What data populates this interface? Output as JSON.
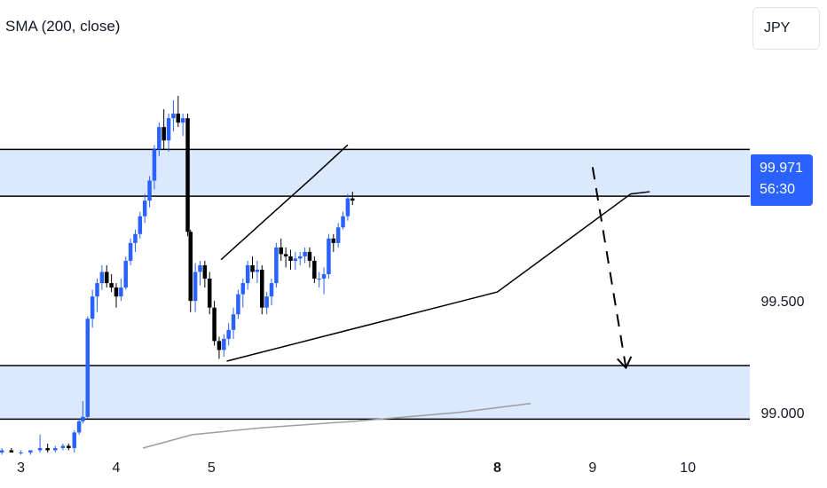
{
  "indicator": {
    "label": "SMA (200, close)"
  },
  "currency": {
    "label": "JPY"
  },
  "last_price": {
    "value": "99.971",
    "countdown": "56:30"
  },
  "colors": {
    "up": "#2962ff",
    "down": "#000000",
    "zone_fill": "#dbe8fd",
    "price_tag": "#2962ff",
    "sma_line": "#9e9e9e"
  },
  "chart_data": {
    "type": "candlestick",
    "title": "",
    "xlabel": "",
    "ylabel": "",
    "ylim": [
      98.82,
      100.85
    ],
    "xlim": [
      2.78,
      10.65
    ],
    "x_ticks": [
      {
        "value": 3,
        "label": "3",
        "bold": false
      },
      {
        "value": 4,
        "label": "4",
        "bold": false
      },
      {
        "value": 5,
        "label": "5",
        "bold": false
      },
      {
        "value": 8,
        "label": "8",
        "bold": true
      },
      {
        "value": 9,
        "label": "9",
        "bold": false
      },
      {
        "value": 10,
        "label": "10",
        "bold": false
      }
    ],
    "y_ticks": [
      {
        "value": 99.5,
        "label": "99.500"
      },
      {
        "value": 99.0,
        "label": "99.000"
      }
    ],
    "zones": [
      {
        "name": "resistance",
        "y_low": 99.97,
        "y_high": 100.18
      },
      {
        "name": "support",
        "y_low": 98.97,
        "y_high": 99.21
      }
    ],
    "last_price_line": 99.971,
    "channel": {
      "upper": [
        [
          5.1,
          99.685
        ],
        [
          5.58,
          99.87
        ],
        [
          6.05,
          100.05
        ],
        [
          6.43,
          100.2
        ]
      ],
      "lower": [
        [
          5.16,
          99.23
        ],
        [
          8.0,
          99.54
        ],
        [
          9.4,
          99.98
        ],
        [
          9.6,
          99.99
        ]
      ]
    },
    "projection_arrow": [
      [
        9.0,
        100.1
      ],
      [
        9.35,
        99.2
      ]
    ],
    "sma": [
      [
        4.28,
        98.84
      ],
      [
        4.8,
        98.9
      ],
      [
        5.5,
        98.93
      ],
      [
        6.5,
        98.96
      ],
      [
        7.6,
        99.0
      ],
      [
        8.35,
        99.04
      ]
    ],
    "candles": [
      [
        2.8,
        98.82,
        98.84,
        98.81,
        98.83
      ],
      [
        2.9,
        98.83,
        98.84,
        98.82,
        98.82
      ],
      [
        3.0,
        98.82,
        98.83,
        98.81,
        98.82
      ],
      [
        3.1,
        98.82,
        98.83,
        98.81,
        98.83
      ],
      [
        3.2,
        98.83,
        98.9,
        98.82,
        98.84
      ],
      [
        3.28,
        98.84,
        98.86,
        98.82,
        98.83
      ],
      [
        3.36,
        98.83,
        98.85,
        98.82,
        98.84
      ],
      [
        3.44,
        98.84,
        98.86,
        98.83,
        98.85
      ],
      [
        3.5,
        98.85,
        98.86,
        98.83,
        98.84
      ],
      [
        3.56,
        98.84,
        98.92,
        98.82,
        98.91
      ],
      [
        3.61,
        98.91,
        98.97,
        98.9,
        98.96
      ],
      [
        3.65,
        98.96,
        99.05,
        98.95,
        98.98
      ],
      [
        3.7,
        98.98,
        99.43,
        98.97,
        99.42
      ],
      [
        3.75,
        99.42,
        99.55,
        99.38,
        99.52
      ],
      [
        3.8,
        99.52,
        99.6,
        99.45,
        99.58
      ],
      [
        3.85,
        99.58,
        99.66,
        99.55,
        99.63
      ],
      [
        3.9,
        99.63,
        99.66,
        99.56,
        99.58
      ],
      [
        3.95,
        99.58,
        99.62,
        99.54,
        99.56
      ],
      [
        4.0,
        99.56,
        99.58,
        99.47,
        99.52
      ],
      [
        4.05,
        99.52,
        99.6,
        99.5,
        99.56
      ],
      [
        4.1,
        99.56,
        99.7,
        99.55,
        99.68
      ],
      [
        4.15,
        99.68,
        99.78,
        99.66,
        99.76
      ],
      [
        4.2,
        99.76,
        99.82,
        99.72,
        99.8
      ],
      [
        4.25,
        99.8,
        99.9,
        99.78,
        99.88
      ],
      [
        4.3,
        99.88,
        99.98,
        99.85,
        99.95
      ],
      [
        4.35,
        99.95,
        100.06,
        99.92,
        100.04
      ],
      [
        4.4,
        100.04,
        100.2,
        100.0,
        100.18
      ],
      [
        4.45,
        100.18,
        100.3,
        100.15,
        100.28
      ],
      [
        4.5,
        100.28,
        100.36,
        100.18,
        100.22
      ],
      [
        4.55,
        100.22,
        100.34,
        100.17,
        100.32
      ],
      [
        4.6,
        100.32,
        100.4,
        100.26,
        100.34
      ],
      [
        4.65,
        100.34,
        100.42,
        100.28,
        100.3
      ],
      [
        4.7,
        100.3,
        100.34,
        100.24,
        100.32
      ],
      [
        4.75,
        100.32,
        100.34,
        99.79,
        99.81
      ],
      [
        4.78,
        99.81,
        99.82,
        99.45,
        99.5
      ],
      [
        4.83,
        99.5,
        99.67,
        99.45,
        99.63
      ],
      [
        4.88,
        99.63,
        99.68,
        99.57,
        99.66
      ],
      [
        4.93,
        99.66,
        99.68,
        99.56,
        99.6
      ],
      [
        4.98,
        99.6,
        99.63,
        99.44,
        99.47
      ],
      [
        5.03,
        99.47,
        99.5,
        99.3,
        99.32
      ],
      [
        5.08,
        99.32,
        99.34,
        99.24,
        99.28
      ],
      [
        5.13,
        99.28,
        99.35,
        99.25,
        99.33
      ],
      [
        5.18,
        99.33,
        99.4,
        99.3,
        99.37
      ],
      [
        5.23,
        99.37,
        99.47,
        99.33,
        99.44
      ],
      [
        5.28,
        99.44,
        99.55,
        99.42,
        99.53
      ],
      [
        5.33,
        99.53,
        99.6,
        99.47,
        99.58
      ],
      [
        5.38,
        99.58,
        99.68,
        99.55,
        99.66
      ],
      [
        5.43,
        99.66,
        99.7,
        99.6,
        99.63
      ],
      [
        5.48,
        99.63,
        99.68,
        99.58,
        99.64
      ],
      [
        5.53,
        99.64,
        99.66,
        99.44,
        99.47
      ],
      [
        5.58,
        99.47,
        99.54,
        99.44,
        99.52
      ],
      [
        5.63,
        99.52,
        99.6,
        99.48,
        99.58
      ],
      [
        5.68,
        99.58,
        99.76,
        99.56,
        99.74
      ],
      [
        5.73,
        99.74,
        99.78,
        99.68,
        99.71
      ],
      [
        5.78,
        99.71,
        99.74,
        99.65,
        99.7
      ],
      [
        5.83,
        99.7,
        99.73,
        99.64,
        99.68
      ],
      [
        5.88,
        99.68,
        99.72,
        99.64,
        99.69
      ],
      [
        5.93,
        99.69,
        99.72,
        99.66,
        99.7
      ],
      [
        5.98,
        99.7,
        99.74,
        99.67,
        99.72
      ],
      [
        6.03,
        99.72,
        99.74,
        99.65,
        99.68
      ],
      [
        6.08,
        99.68,
        99.7,
        99.58,
        99.6
      ],
      [
        6.13,
        99.6,
        99.63,
        99.56,
        99.6
      ],
      [
        6.18,
        99.6,
        99.65,
        99.53,
        99.62
      ],
      [
        6.23,
        99.62,
        99.8,
        99.6,
        99.78
      ],
      [
        6.28,
        99.78,
        99.8,
        99.72,
        99.76
      ],
      [
        6.33,
        99.76,
        99.85,
        99.74,
        99.83
      ],
      [
        6.38,
        99.83,
        99.9,
        99.82,
        99.88
      ],
      [
        6.43,
        99.88,
        99.98,
        99.86,
        99.96
      ],
      [
        6.48,
        99.96,
        99.99,
        99.93,
        99.95
      ]
    ]
  }
}
